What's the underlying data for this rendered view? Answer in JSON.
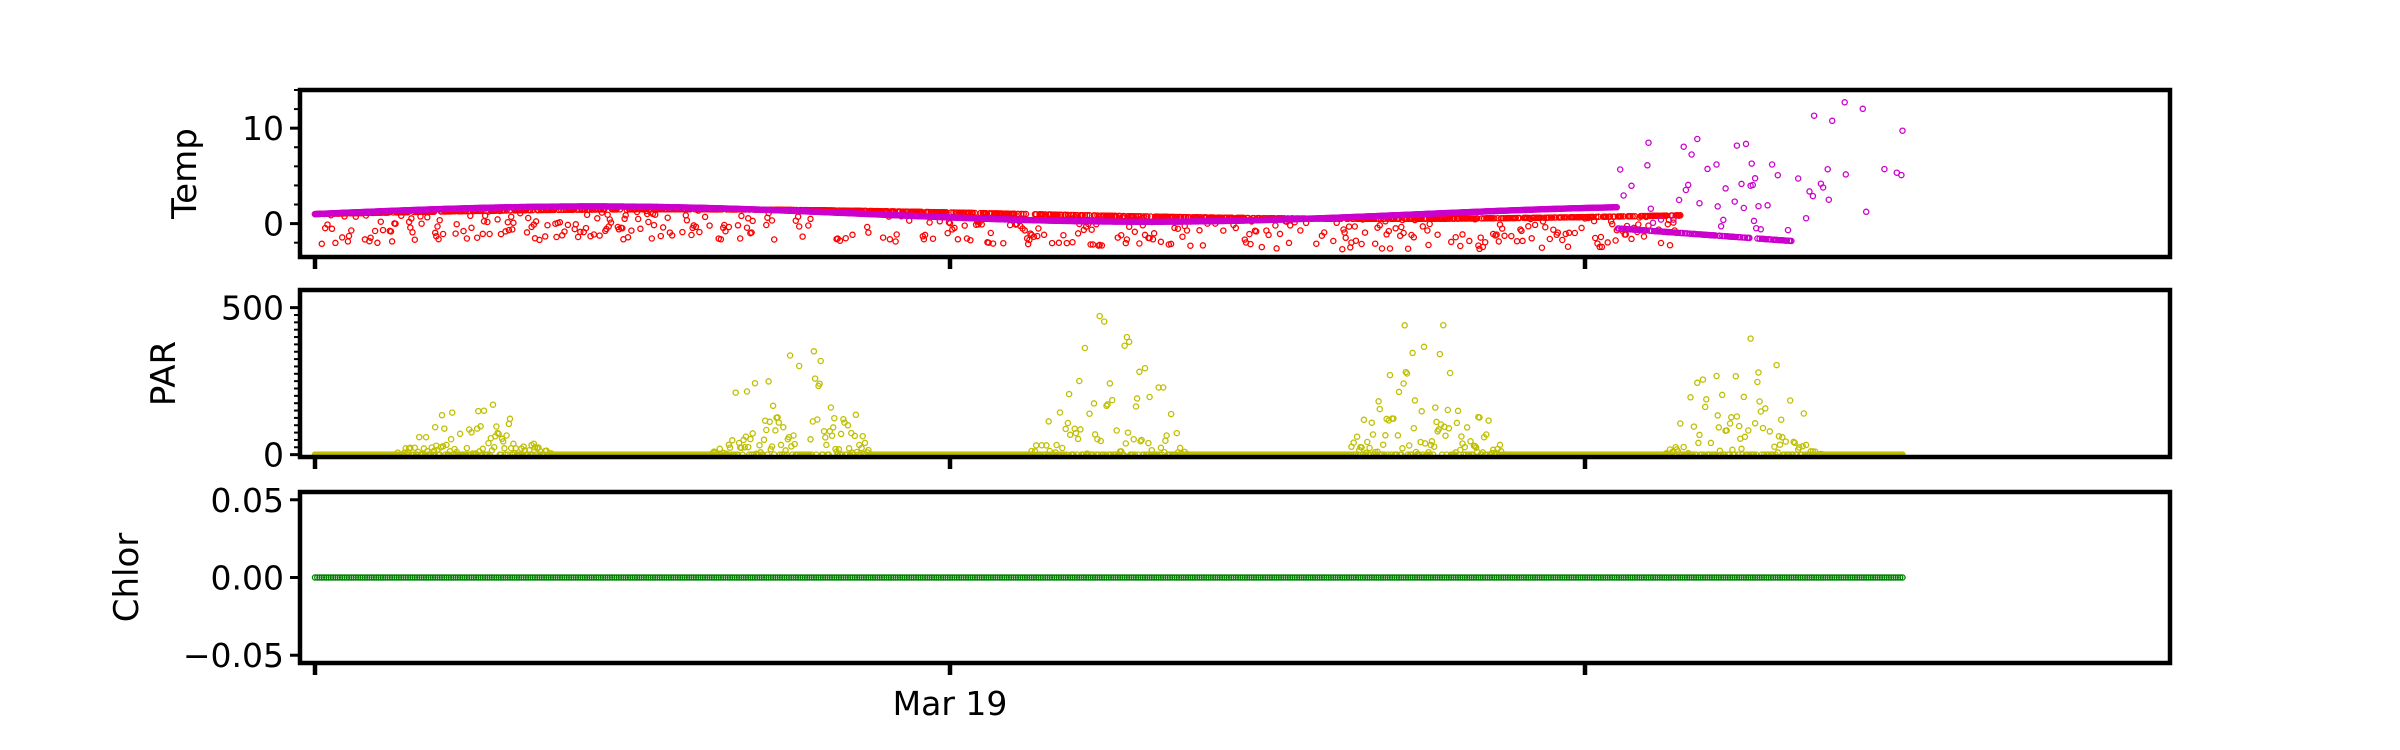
{
  "chart_data": [
    {
      "type": "scatter",
      "ylabel": "Temp",
      "ylim": [
        -3.5,
        14
      ],
      "yticks": [
        {
          "value": 0,
          "label": "0"
        },
        {
          "value": 10,
          "label": "10"
        }
      ],
      "series": [
        {
          "color": "#ff0000",
          "marker": "open-circle",
          "shape": "temp_sensor_a"
        },
        {
          "color": "#cc00cc",
          "marker": "open-circle",
          "shape": "temp_sensor_b"
        }
      ]
    },
    {
      "type": "scatter",
      "ylabel": "PAR",
      "ylim": [
        -8,
        560
      ],
      "yticks": [
        {
          "value": 0,
          "label": "0"
        },
        {
          "value": 500,
          "label": "500"
        }
      ],
      "series": [
        {
          "color": "#bfbf00",
          "marker": "open-circle",
          "shape": "diurnal_peaks"
        }
      ]
    },
    {
      "type": "scatter",
      "ylabel": "Chlor",
      "ylim": [
        -0.055,
        0.055
      ],
      "yticks": [
        {
          "value": 0.05,
          "label": "0.05"
        },
        {
          "value": 0.0,
          "label": "0.00"
        },
        {
          "value": -0.05,
          "label": "−0.05"
        }
      ],
      "series": [
        {
          "color": "#008000",
          "marker": "open-circle",
          "shape": "constant",
          "value": 0.0
        }
      ]
    }
  ],
  "x_axis": {
    "type": "date",
    "range": [
      "2022-03-17",
      "2022-03-23"
    ],
    "data_range": [
      "2022-03-17",
      "2022-03-22"
    ],
    "major_ticks": [
      {
        "value": "2022-03-17",
        "label": ""
      },
      {
        "value": "2022-03-19",
        "label": "Mar 19"
      },
      {
        "value": "2022-03-21",
        "label": ""
      }
    ]
  }
}
